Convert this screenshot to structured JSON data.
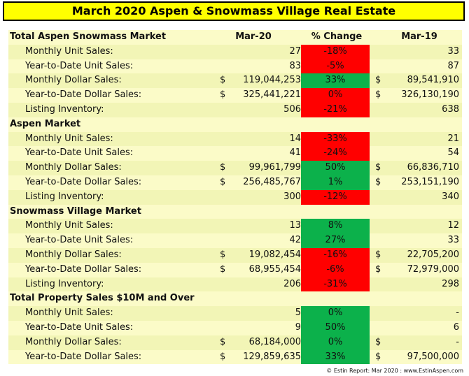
{
  "title": "March 2020 Aspen & Snowmass Village Real Estate",
  "columns": {
    "current": "Mar-20",
    "change": "% Change",
    "prior": "Mar-19"
  },
  "footer": "© Estin Report: Mar 2020 : www.EstinAspen.com",
  "colors": {
    "title_bg": "#ffff00",
    "negative": "#ff0000",
    "positive": "#0cb14b"
  },
  "sections": [
    {
      "title": "Total Aspen Snowmass Market",
      "rows": [
        {
          "label": "Monthly Unit Sales:",
          "cur_sym": "",
          "current": "27",
          "change": "-18%",
          "tone": "red",
          "prior_sym": "",
          "prior": "33"
        },
        {
          "label": "Year-to-Date Unit Sales:",
          "cur_sym": "",
          "current": "83",
          "change": "-5%",
          "tone": "red",
          "prior_sym": "",
          "prior": "87"
        },
        {
          "label": "Monthly Dollar Sales:",
          "cur_sym": "$",
          "current": "119,044,253",
          "change": "33%",
          "tone": "green",
          "prior_sym": "$",
          "prior": "89,541,910"
        },
        {
          "label": "Year-to-Date Dollar Sales:",
          "cur_sym": "$",
          "current": "325,441,221",
          "change": "0%",
          "tone": "red",
          "prior_sym": "$",
          "prior": "326,130,190"
        },
        {
          "label": "Listing Inventory:",
          "cur_sym": "",
          "current": "506",
          "change": "-21%",
          "tone": "red",
          "prior_sym": "",
          "prior": "638"
        }
      ]
    },
    {
      "title": "Aspen Market",
      "rows": [
        {
          "label": "Monthly Unit Sales:",
          "cur_sym": "",
          "current": "14",
          "change": "-33%",
          "tone": "red",
          "prior_sym": "",
          "prior": "21"
        },
        {
          "label": "Year-to-Date Unit Sales:",
          "cur_sym": "",
          "current": "41",
          "change": "-24%",
          "tone": "red",
          "prior_sym": "",
          "prior": "54"
        },
        {
          "label": "Monthly Dollar Sales:",
          "cur_sym": "$",
          "current": "99,961,799",
          "change": "50%",
          "tone": "green",
          "prior_sym": "$",
          "prior": "66,836,710"
        },
        {
          "label": "Year-to-Date Dollar Sales:",
          "cur_sym": "$",
          "current": "256,485,767",
          "change": "1%",
          "tone": "green",
          "prior_sym": "$",
          "prior": "253,151,190"
        },
        {
          "label": "Listing Inventory:",
          "cur_sym": "",
          "current": "300",
          "change": "-12%",
          "tone": "red",
          "prior_sym": "",
          "prior": "340"
        }
      ]
    },
    {
      "title": "Snowmass Village Market",
      "rows": [
        {
          "label": "Monthly Unit Sales:",
          "cur_sym": "",
          "current": "13",
          "change": "8%",
          "tone": "green",
          "prior_sym": "",
          "prior": "12"
        },
        {
          "label": "Year-to-Date Unit Sales:",
          "cur_sym": "",
          "current": "42",
          "change": "27%",
          "tone": "green",
          "prior_sym": "",
          "prior": "33"
        },
        {
          "label": "Monthly Dollar Sales:",
          "cur_sym": "$",
          "current": "19,082,454",
          "change": "-16%",
          "tone": "red",
          "prior_sym": "$",
          "prior": "22,705,200"
        },
        {
          "label": "Year-to-Date Dollar Sales:",
          "cur_sym": "$",
          "current": "68,955,454",
          "change": "-6%",
          "tone": "red",
          "prior_sym": "$",
          "prior": "72,979,000"
        },
        {
          "label": "Listing Inventory:",
          "cur_sym": "",
          "current": "206",
          "change": "-31%",
          "tone": "red",
          "prior_sym": "",
          "prior": "298"
        }
      ]
    },
    {
      "title": "Total Property Sales $10M and Over",
      "rows": [
        {
          "label": "Monthly Unit Sales:",
          "cur_sym": "",
          "current": "5",
          "change": "0%",
          "tone": "green",
          "prior_sym": "",
          "prior": "-"
        },
        {
          "label": "Year-to-Date Unit Sales:",
          "cur_sym": "",
          "current": "9",
          "change": "50%",
          "tone": "green",
          "prior_sym": "",
          "prior": "6"
        },
        {
          "label": "Monthly Dollar Sales:",
          "cur_sym": "$",
          "current": "68,184,000",
          "change": "0%",
          "tone": "green",
          "prior_sym": "$",
          "prior": "-"
        },
        {
          "label": "Year-to-Date Dollar Sales:",
          "cur_sym": "$",
          "current": "129,859,635",
          "change": "33%",
          "tone": "green",
          "prior_sym": "$",
          "prior": "97,500,000"
        }
      ]
    }
  ]
}
